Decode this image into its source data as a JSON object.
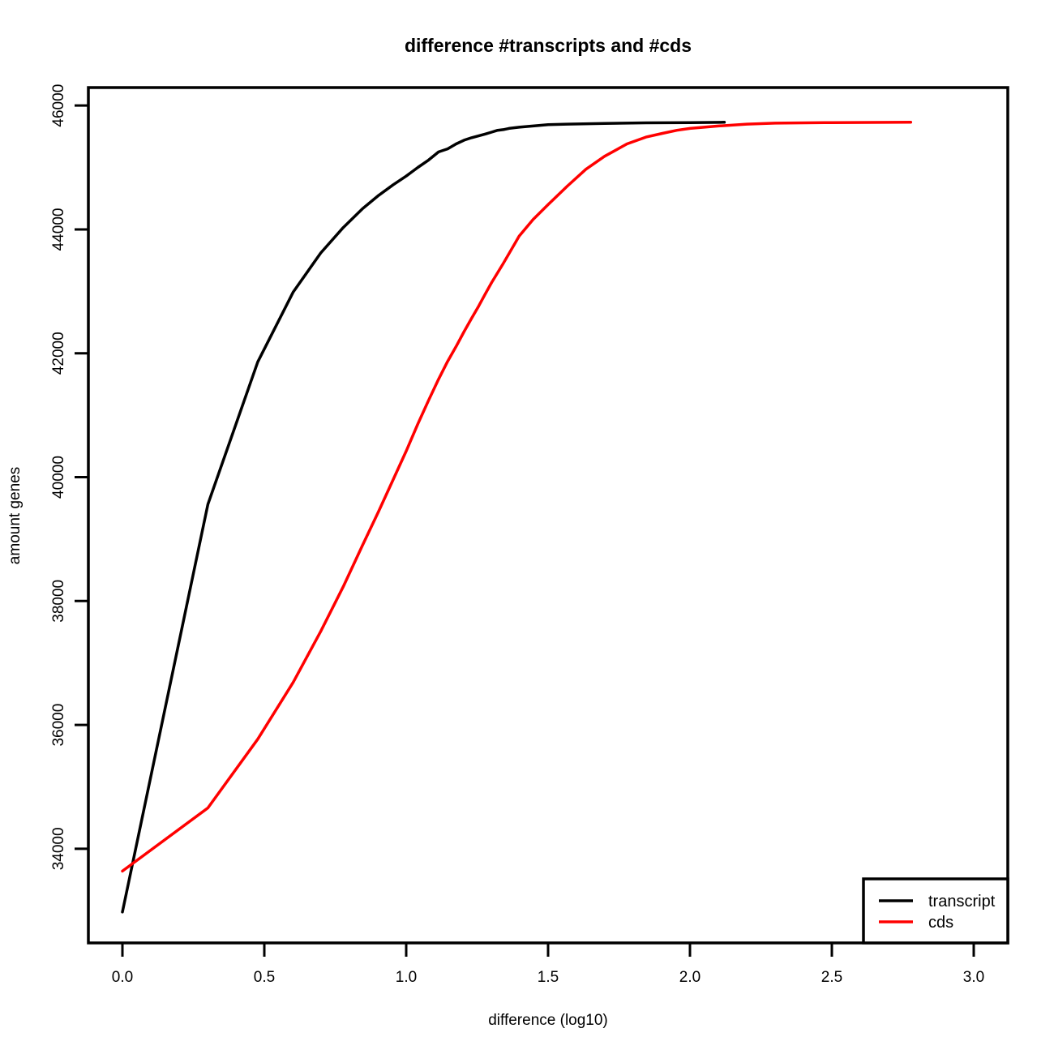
{
  "chart_data": {
    "type": "line",
    "title": "difference #transcripts and #cds",
    "xlabel": "difference (log10)",
    "ylabel": "amount genes",
    "xlim": [
      -0.12,
      3.12
    ],
    "ylim": [
      32480,
      46290
    ],
    "x_ticks": [
      0.0,
      0.5,
      1.0,
      1.5,
      2.0,
      2.5,
      3.0
    ],
    "x_tick_labels": [
      "0.0",
      "0.5",
      "1.0",
      "1.5",
      "2.0",
      "2.5",
      "3.0"
    ],
    "y_ticks": [
      34000,
      36000,
      38000,
      40000,
      42000,
      44000,
      46000
    ],
    "y_tick_labels": [
      "34000",
      "36000",
      "38000",
      "40000",
      "42000",
      "44000",
      "46000"
    ],
    "legend_position": "bottom-right",
    "series": [
      {
        "name": "transcript",
        "color": "#000000",
        "x": [
          0.0,
          0.301,
          0.477,
          0.602,
          0.699,
          0.778,
          0.845,
          0.903,
          0.954,
          1.0,
          1.041,
          1.079,
          1.114,
          1.146,
          1.176,
          1.204,
          1.23,
          1.255,
          1.279,
          1.301,
          1.322,
          1.342,
          1.362,
          1.398,
          1.447,
          1.5,
          1.568,
          1.699,
          1.845,
          2.0,
          2.121
        ],
        "y": [
          32980,
          39560,
          41860,
          42990,
          43620,
          44030,
          44330,
          44550,
          44720,
          44860,
          45000,
          45120,
          45250,
          45300,
          45380,
          45440,
          45480,
          45510,
          45540,
          45570,
          45600,
          45610,
          45630,
          45650,
          45670,
          45690,
          45700,
          45710,
          45720,
          45725,
          45730
        ]
      },
      {
        "name": "cds",
        "color": "#ff0000",
        "x": [
          0.0,
          0.301,
          0.477,
          0.602,
          0.699,
          0.778,
          0.845,
          0.903,
          0.954,
          1.0,
          1.041,
          1.079,
          1.114,
          1.146,
          1.176,
          1.204,
          1.23,
          1.255,
          1.279,
          1.301,
          1.342,
          1.398,
          1.447,
          1.5,
          1.568,
          1.633,
          1.699,
          1.778,
          1.845,
          1.903,
          1.954,
          2.0,
          2.1,
          2.2,
          2.3,
          2.5,
          2.778
        ],
        "y": [
          33640,
          34660,
          35770,
          36690,
          37510,
          38230,
          38890,
          39450,
          39960,
          40420,
          40860,
          41240,
          41580,
          41870,
          42110,
          42350,
          42560,
          42760,
          42960,
          43140,
          43450,
          43890,
          44160,
          44400,
          44700,
          44970,
          45180,
          45380,
          45490,
          45550,
          45600,
          45630,
          45670,
          45700,
          45715,
          45725,
          45730
        ]
      }
    ]
  }
}
